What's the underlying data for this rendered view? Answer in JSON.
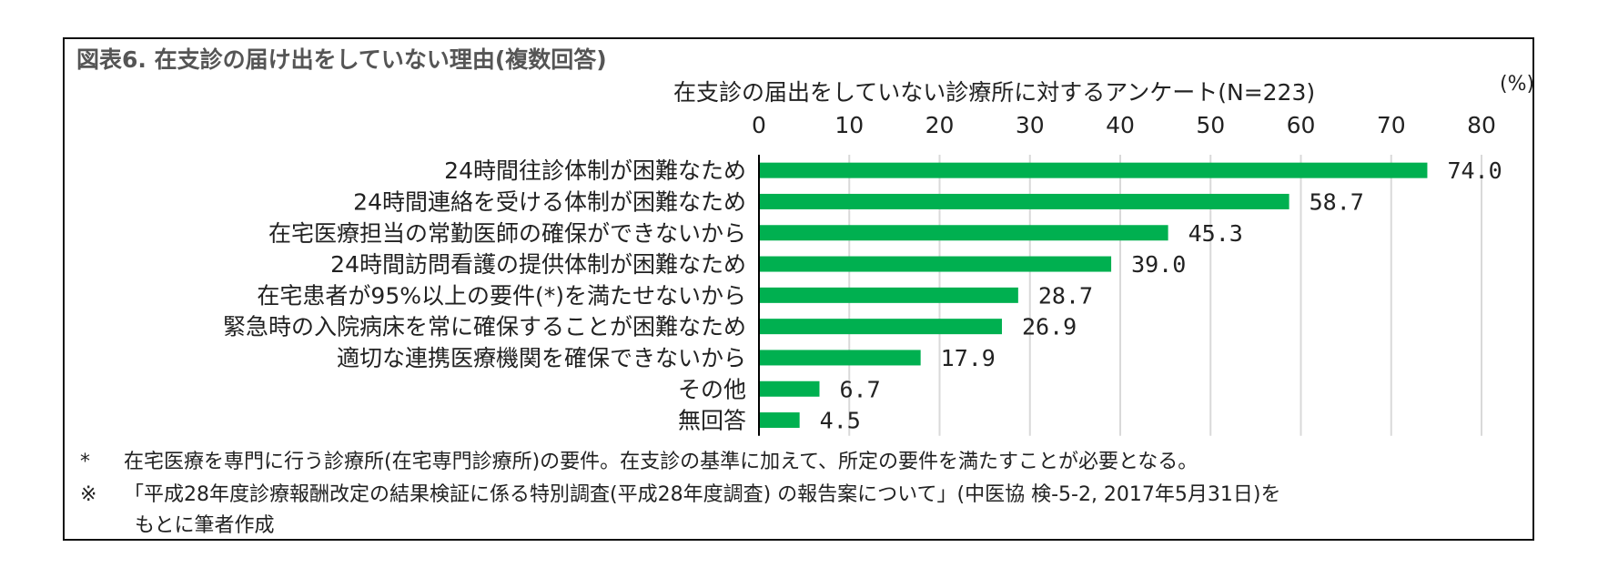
{
  "figure": {
    "title": "図表6. 在支診の届け出をしていない理由(複数回答)",
    "subtitle": "在支診の届出をしていない診療所に対するアンケート(N=223)",
    "unit": "(%)"
  },
  "notes": {
    "note1_mark": "*",
    "note1_text": "在宅医療を専門に行う診療所(在宅専門診療所)の要件。在支診の基準に加えて、所定の要件を満たすことが必要となる。",
    "note2_mark": "※",
    "note2_text": "「平成28年度診療報酬改定の結果検証に係る特別調査(平成28年度調査) の報告案について」(中医協 検-5-2, 2017年5月31日)を",
    "note2_cont": "もとに筆者作成"
  },
  "colors": {
    "bar": "#00b050",
    "grid": "#d9d9d9",
    "axis": "#000000"
  },
  "chart_data": {
    "type": "bar",
    "orientation": "horizontal",
    "categories": [
      "24時間往診体制が困難なため",
      "24時間連絡を受ける体制が困難なため",
      "在宅医療担当の常勤医師の確保ができないから",
      "24時間訪問看護の提供体制が困難なため",
      "在宅患者が95%以上の要件(*)を満たせないから",
      "緊急時の入院病床を常に確保することが困難なため",
      "適切な連携医療機関を確保できないから",
      "その他",
      "無回答"
    ],
    "values": [
      74.0,
      58.7,
      45.3,
      39.0,
      28.7,
      26.9,
      17.9,
      6.7,
      4.5
    ],
    "value_labels": [
      "74.0",
      "58.7",
      "45.3",
      "39.0",
      "28.7",
      "26.9",
      "17.9",
      "6.7",
      "4.5"
    ],
    "xlim": [
      0,
      80
    ],
    "xticks": [
      "0",
      "10",
      "20",
      "30",
      "40",
      "50",
      "60",
      "70",
      "80"
    ],
    "x_axis_position": "top",
    "grid": true
  }
}
